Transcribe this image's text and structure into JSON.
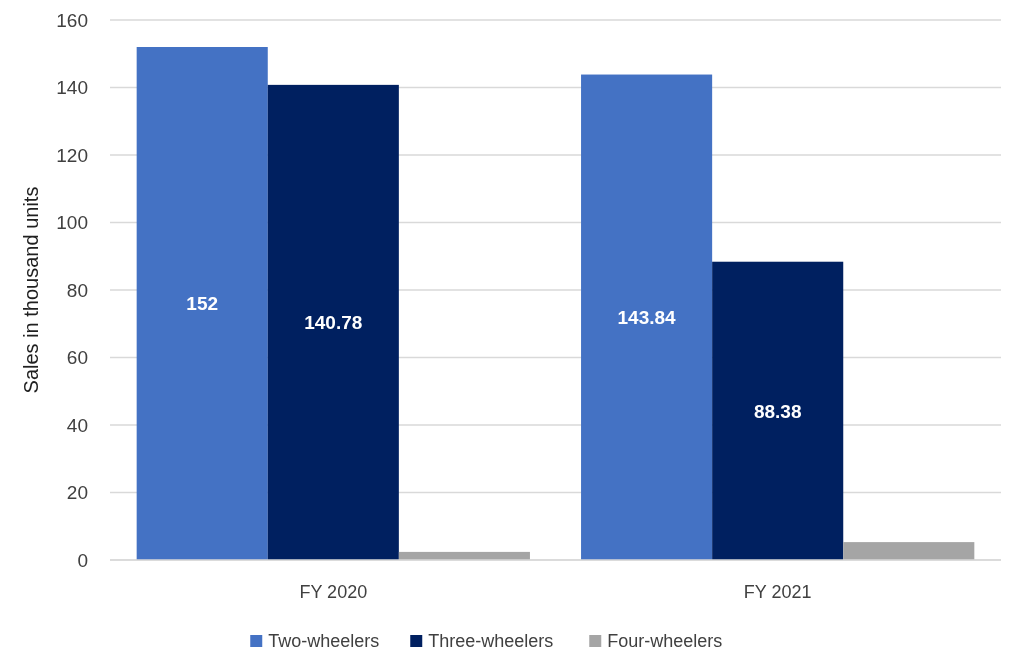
{
  "chart_data": {
    "type": "bar",
    "ylabel": "Sales in thousand units",
    "categories": [
      "FY 2020",
      "FY 2021"
    ],
    "series": [
      {
        "name": "Two-wheelers",
        "color": "#4472c4",
        "values": [
          152,
          143.84
        ],
        "value_labels": [
          "152",
          "143.84"
        ]
      },
      {
        "name": "Three-wheelers",
        "color": "#002060",
        "values": [
          140.78,
          88.38
        ],
        "value_labels": [
          "140.78",
          "88.38"
        ]
      },
      {
        "name": "Four-wheelers",
        "color": "#a5a5a5",
        "values": [
          2.4,
          5.3
        ]
      }
    ],
    "ylim": [
      0,
      160
    ],
    "yticks": [
      0,
      20,
      40,
      60,
      80,
      100,
      120,
      140,
      160
    ],
    "grid": "y",
    "legend": "bottom"
  }
}
